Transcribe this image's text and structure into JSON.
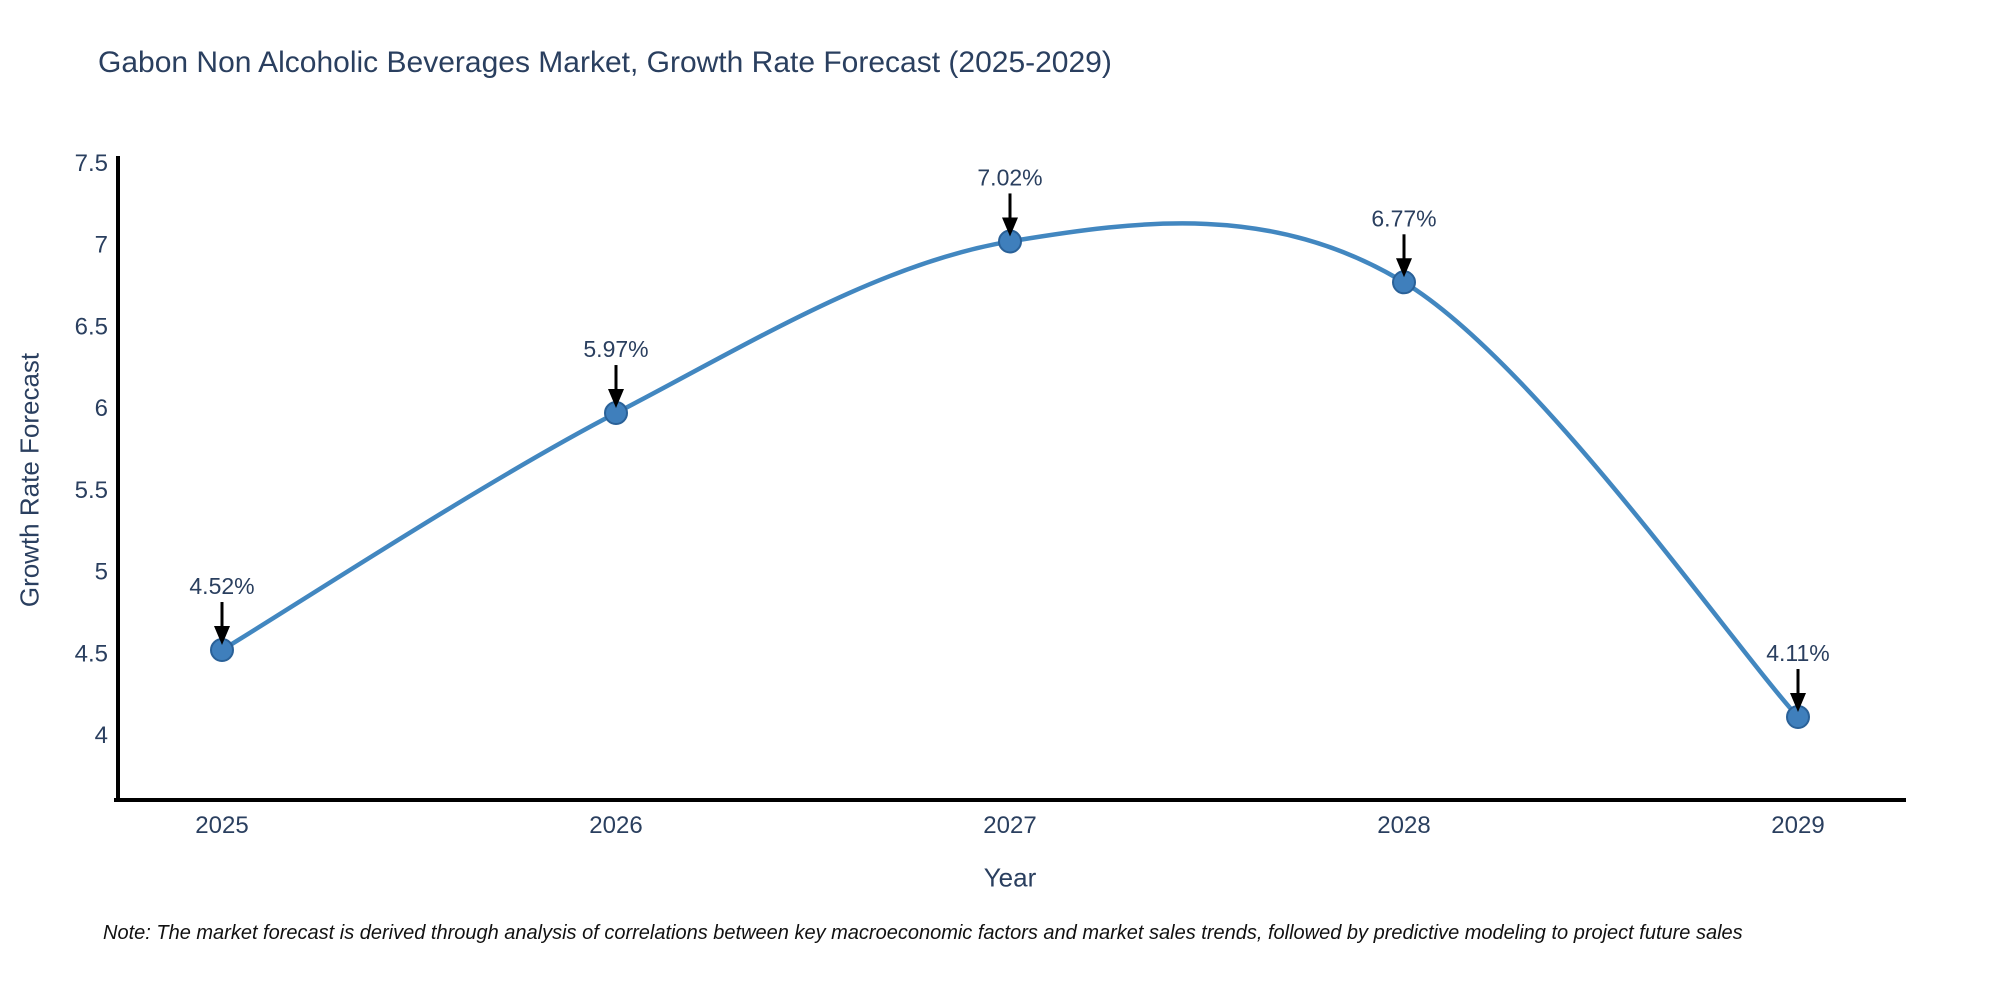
{
  "note": "Note: The market forecast is derived through analysis of correlations between key macroeconomic factors and market sales trends, followed by predictive modeling to project future sales",
  "chart_data": {
    "type": "line",
    "title": "Gabon Non Alcoholic Beverages Market, Growth Rate Forecast (2025-2029)",
    "xlabel": "Year",
    "ylabel": "Growth Rate Forecast",
    "categories": [
      "2025",
      "2026",
      "2027",
      "2028",
      "2029"
    ],
    "values": [
      4.52,
      5.97,
      7.02,
      6.77,
      4.11
    ],
    "point_labels": [
      "4.52%",
      "5.97%",
      "7.02%",
      "6.77%",
      "4.11%"
    ],
    "ytick_values": [
      4,
      4.5,
      5,
      5.5,
      6,
      6.5,
      7,
      7.5
    ],
    "ytick_labels": [
      "4",
      "4.5",
      "5",
      "5.5",
      "6",
      "6.5",
      "7",
      "7.5"
    ],
    "ylim": [
      3.6,
      7.5
    ],
    "line_shape": "spline",
    "grid": false,
    "legend": "none",
    "colors": {
      "line": "#4287c0",
      "marker_fill": "#3f7fbc",
      "marker_edge": "#2a6198",
      "axis": "#000000",
      "tick_text": "#2a3f5f",
      "annotation_text": "#2a3f5f",
      "annotation_arrow": "#000000"
    }
  }
}
